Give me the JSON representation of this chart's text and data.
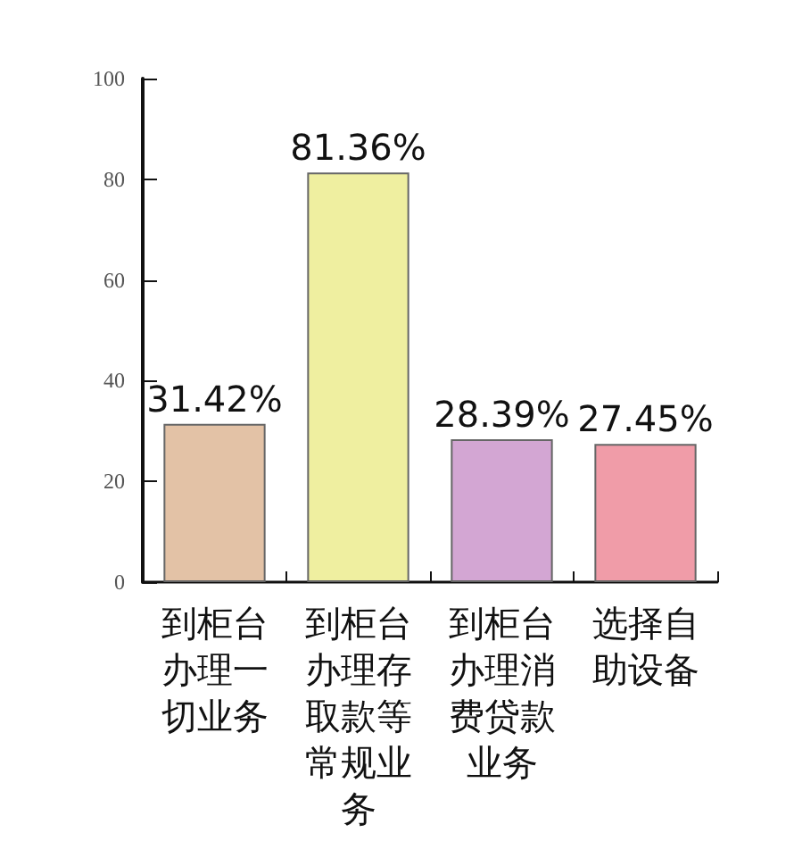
{
  "chart_data": {
    "type": "bar",
    "categories": [
      "到柜台办理一切业务",
      "到柜台办理存取款等常规业务",
      "到柜台办理消费贷款业务",
      "选择自助设备"
    ],
    "values": [
      31.42,
      81.36,
      28.39,
      27.45
    ],
    "colors": [
      "#e3c2a6",
      "#efefa0",
      "#d3a6d3",
      "#f09ca8"
    ],
    "value_labels": [
      "31.42%",
      "81.36%",
      "28.39%",
      "27.45%"
    ],
    "ylim": [
      0,
      100
    ],
    "yticks": [
      0,
      20,
      40,
      60,
      80,
      100
    ],
    "grid": false
  }
}
